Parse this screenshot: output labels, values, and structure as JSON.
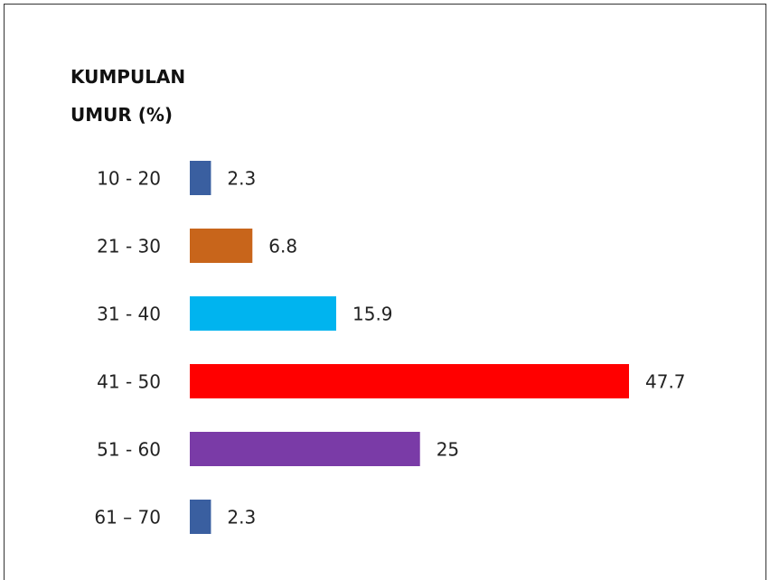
{
  "chart_data": {
    "type": "bar",
    "orientation": "horizontal",
    "title": "KUMPULAN UMUR (%)",
    "categories": [
      "10 - 20",
      "21 - 30",
      "31 - 40",
      "41 - 50",
      "51 - 60",
      "61 – 70"
    ],
    "values": [
      2.3,
      6.8,
      15.9,
      47.7,
      25,
      2.3
    ],
    "colors": [
      "#3a5fa0",
      "#c8651b",
      "#00b4ef",
      "#ff0000",
      "#7a3ba7",
      "#3a5fa0"
    ]
  }
}
